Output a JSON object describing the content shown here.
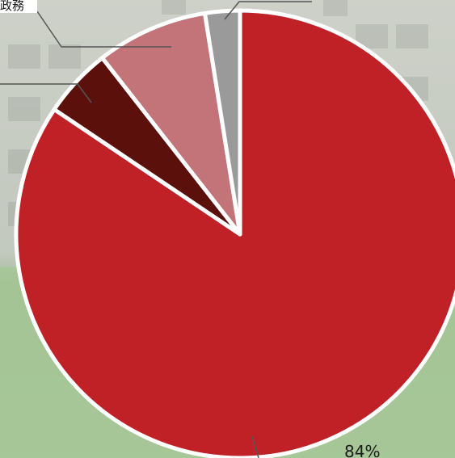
{
  "chart_data": {
    "type": "pie",
    "start_angle_deg": 0,
    "direction": "clockwise",
    "slices": [
      {
        "value": 84,
        "label": "84%",
        "color": "#bf2126"
      },
      {
        "value": 5,
        "label": "",
        "color": "#5b100c"
      },
      {
        "value": 8,
        "label": "",
        "color": "#c27478"
      },
      {
        "value": 2.5,
        "label": "",
        "color": "#9a9a9a"
      }
    ],
    "annotations": [
      {
        "text": "政務"
      }
    ]
  }
}
